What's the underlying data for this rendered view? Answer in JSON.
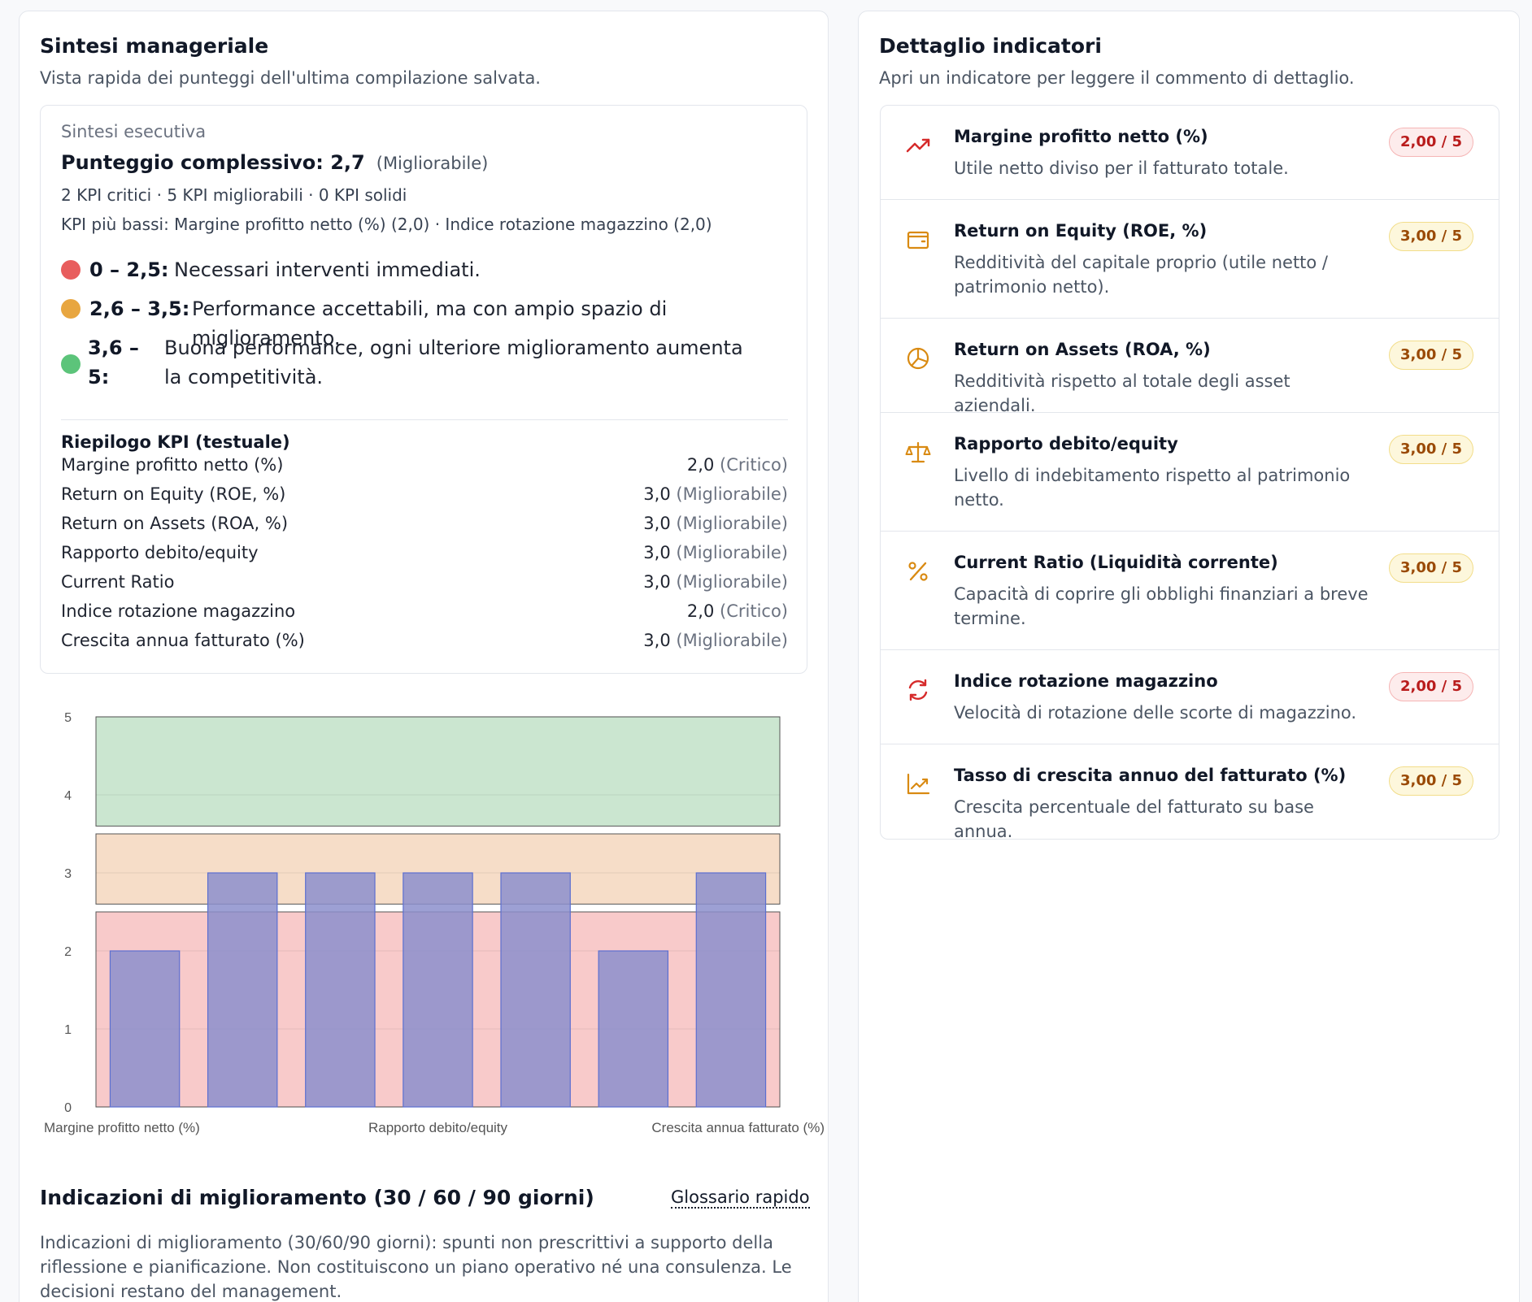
{
  "summary": {
    "title": "Sintesi manageriale",
    "subtitle": "Vista rapida dei punteggi dell'ultima compilazione salvata.",
    "exec_label": "Sintesi esecutiva",
    "score_label": "Punteggio complessivo: 2,7",
    "score_tag": "(Migliorabile)",
    "counts": "2 KPI critici · 5 KPI migliorabili · 0 KPI solidi",
    "lowest": "KPI più bassi: Margine profitto netto (%) (2,0) · Indice rotazione magazzino (2,0)",
    "legend": [
      {
        "range": "0 – 2,5:",
        "text": "Necessari interventi immediati.",
        "color": "#e85d5d"
      },
      {
        "range": "2,6 – 3,5:",
        "text": "Performance accettabili, ma con ampio spazio di miglioramento.",
        "color": "#e8a640"
      },
      {
        "range": "3,6 – 5:",
        "text": "Buona performance, ogni ulteriore miglioramento aumenta la competitività.",
        "color": "#5cc47a"
      }
    ],
    "recap_title": "Riepilogo KPI (testuale)",
    "recap": [
      {
        "name": "Margine profitto netto (%)",
        "value": "2,0",
        "tag": "(Critico)"
      },
      {
        "name": "Return on Equity (ROE, %)",
        "value": "3,0",
        "tag": "(Migliorabile)"
      },
      {
        "name": "Return on Assets (ROA, %)",
        "value": "3,0",
        "tag": "(Migliorabile)"
      },
      {
        "name": "Rapporto debito/equity",
        "value": "3,0",
        "tag": "(Migliorabile)"
      },
      {
        "name": "Current Ratio",
        "value": "3,0",
        "tag": "(Migliorabile)"
      },
      {
        "name": "Indice rotazione magazzino",
        "value": "2,0",
        "tag": "(Critico)"
      },
      {
        "name": "Crescita annua fatturato (%)",
        "value": "3,0",
        "tag": "(Migliorabile)"
      }
    ]
  },
  "chart_data": {
    "type": "bar",
    "categories": [
      "Margine profitto netto (%)",
      "Return on Equity (ROE, %)",
      "Return on Assets (ROA, %)",
      "Rapporto debito/equity",
      "Current Ratio",
      "Indice rotazione magazzino",
      "Crescita annua fatturato (%)"
    ],
    "visible_category_labels": [
      "Margine profitto netto (%)",
      "Rapporto debito/equity",
      "Crescita annua fatturato (%)"
    ],
    "values": [
      2,
      3,
      3,
      3,
      3,
      2,
      3
    ],
    "ylim": [
      0,
      5
    ],
    "yticks": [
      "0",
      "1",
      "2",
      "3",
      "4",
      "5"
    ],
    "bands": [
      {
        "from": 0,
        "to": 2.5,
        "color": "#f8caca"
      },
      {
        "from": 2.6,
        "to": 3.5,
        "color": "#f6ddc8"
      },
      {
        "from": 3.6,
        "to": 5,
        "color": "#cbe6d0"
      }
    ],
    "bar_color": "#8c8fcc",
    "grid": true
  },
  "improve": {
    "title": "Indicazioni di miglioramento (30 / 60 / 90 giorni)",
    "glossary": "Glossario rapido",
    "text": "Indicazioni di miglioramento (30/60/90 giorni): spunti non prescrittivi a supporto della riflessione e pianificazione. Non costituiscono un piano operativo né una consulenza. Le decisioni restano del management."
  },
  "detail": {
    "title": "Dettaglio indicatori",
    "subtitle": "Apri un indicatore per leggere il commento di dettaglio.",
    "items": [
      {
        "name": "Margine profitto netto (%)",
        "desc": "Utile netto diviso per il fatturato totale.",
        "badge": "2,00 / 5",
        "level": "red",
        "icon": "trending-up-icon"
      },
      {
        "name": "Return on Equity (ROE, %)",
        "desc": "Redditività del capitale proprio (utile netto / patrimonio netto).",
        "badge": "3,00 / 5",
        "level": "yellow",
        "icon": "wallet-icon"
      },
      {
        "name": "Return on Assets (ROA, %)",
        "desc": "Redditività rispetto al totale degli asset aziendali.",
        "badge": "3,00 / 5",
        "level": "yellow",
        "icon": "pie-chart-icon"
      },
      {
        "name": "Rapporto debito/equity",
        "desc": "Livello di indebitamento rispetto al patrimonio netto.",
        "badge": "3,00 / 5",
        "level": "yellow",
        "icon": "scale-icon"
      },
      {
        "name": "Current Ratio (Liquidità corrente)",
        "desc": "Capacità di coprire gli obblighi finanziari a breve termine.",
        "badge": "3,00 / 5",
        "level": "yellow",
        "icon": "percent-icon"
      },
      {
        "name": "Indice rotazione magazzino",
        "desc": "Velocità di rotazione delle scorte di magazzino.",
        "badge": "2,00 / 5",
        "level": "red",
        "icon": "refresh-icon"
      },
      {
        "name": "Tasso di crescita annuo del fatturato (%)",
        "desc": "Crescita percentuale del fatturato su base annua.",
        "badge": "3,00 / 5",
        "level": "yellow",
        "icon": "line-chart-icon"
      }
    ],
    "colors": {
      "red": "#d62b2b",
      "yellow": "#d98a12"
    }
  }
}
